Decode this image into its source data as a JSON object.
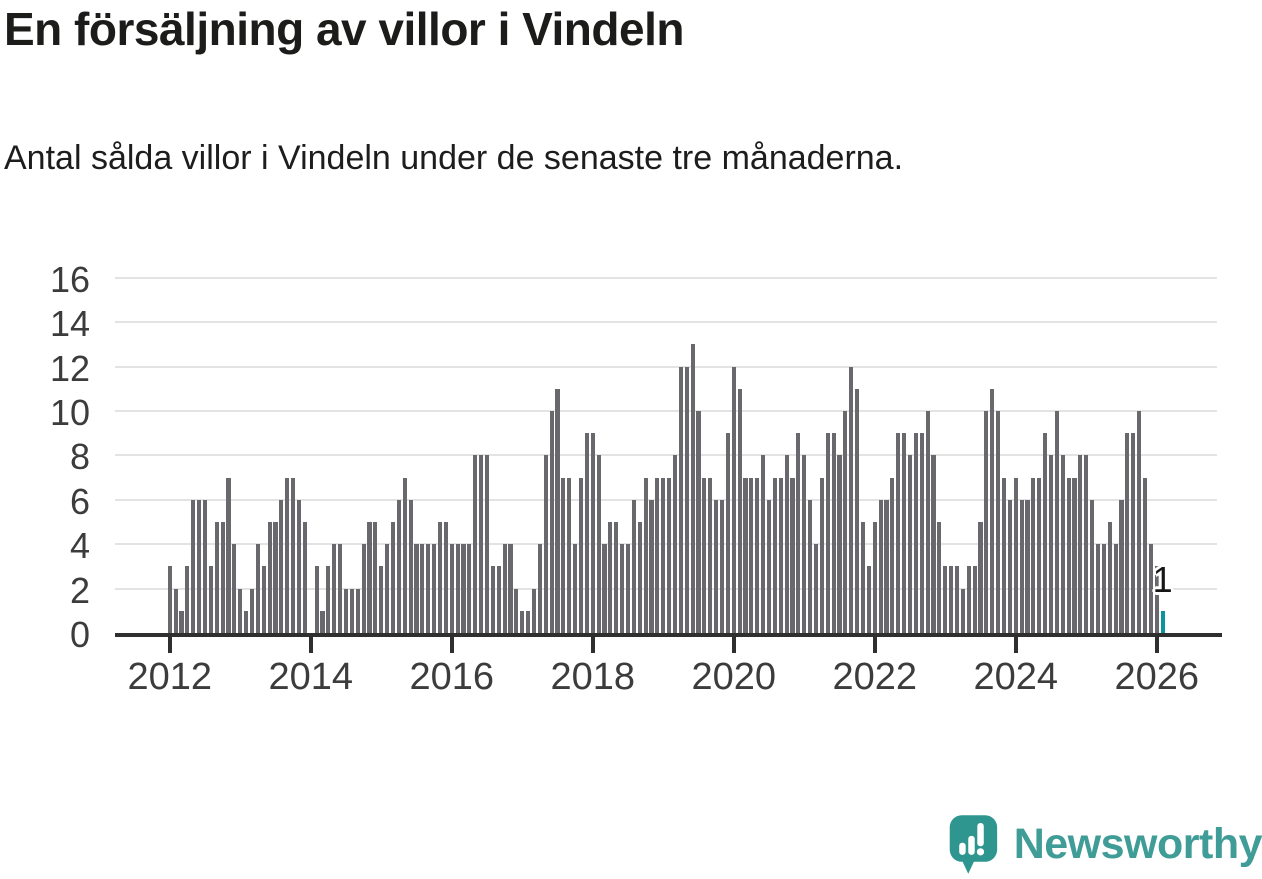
{
  "title": "En försäljning av villor i Vindeln",
  "subtitle": "Antal sålda villor i Vindeln under de senaste tre månaderna.",
  "annotation": {
    "text": "1"
  },
  "logo": {
    "text": "Newsworthy"
  },
  "colors": {
    "bar": "#69696d",
    "highlight": "#0b959b",
    "axis": "#2f2f2f",
    "grid": "#e3e3e3",
    "tick_label": "#3c3c3c",
    "logo_teal": "#3f9c96",
    "title_text": "#1c1c1a"
  },
  "chart_data": {
    "type": "bar",
    "title": "En försäljning av villor i Vindeln",
    "subtitle": "Antal sålda villor i Vindeln under de senaste tre månaderna.",
    "frequency": "monthly",
    "x_start": "2012-01",
    "x_end": "2026-02",
    "ylim": [
      0,
      16
    ],
    "yticks": [
      0,
      2,
      4,
      6,
      8,
      10,
      12,
      14,
      16
    ],
    "xtick_years": [
      2012,
      2014,
      2016,
      2018,
      2020,
      2022,
      2024,
      2026
    ],
    "grid": true,
    "legend": "none",
    "highlight_last_bar": true,
    "last_value_label": "1",
    "values": [
      3,
      2,
      1,
      3,
      6,
      6,
      6,
      3,
      5,
      5,
      7,
      4,
      2,
      1,
      2,
      4,
      3,
      5,
      5,
      6,
      7,
      7,
      6,
      5,
      0,
      3,
      1,
      3,
      4,
      4,
      2,
      2,
      2,
      4,
      5,
      5,
      3,
      4,
      5,
      6,
      7,
      6,
      4,
      4,
      4,
      4,
      5,
      5,
      4,
      4,
      4,
      4,
      8,
      8,
      8,
      3,
      3,
      4,
      4,
      2,
      1,
      1,
      2,
      4,
      8,
      10,
      11,
      7,
      7,
      4,
      7,
      9,
      9,
      8,
      4,
      5,
      5,
      4,
      4,
      6,
      5,
      7,
      6,
      7,
      7,
      7,
      8,
      12,
      12,
      13,
      10,
      7,
      7,
      6,
      6,
      9,
      12,
      11,
      7,
      7,
      7,
      8,
      6,
      7,
      7,
      8,
      7,
      9,
      8,
      6,
      4,
      7,
      9,
      9,
      8,
      10,
      12,
      11,
      5,
      3,
      5,
      6,
      6,
      7,
      9,
      9,
      8,
      9,
      9,
      10,
      8,
      5,
      3,
      3,
      3,
      2,
      3,
      3,
      5,
      10,
      11,
      10,
      7,
      6,
      7,
      6,
      6,
      7,
      7,
      9,
      8,
      10,
      8,
      7,
      7,
      8,
      8,
      6,
      4,
      4,
      5,
      4,
      6,
      9,
      9,
      10,
      7,
      4,
      3,
      1
    ]
  }
}
